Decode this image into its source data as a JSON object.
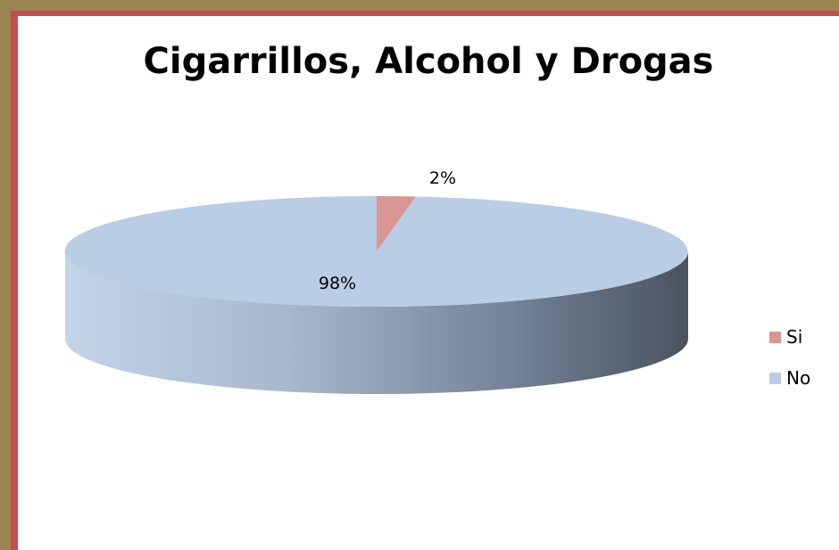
{
  "chart_data": {
    "type": "pie",
    "title": "Cigarrillos,  Alcohol y Drogas",
    "categories": [
      "Si",
      "No"
    ],
    "values": [
      2,
      98
    ],
    "data_labels": [
      "2%",
      "98%"
    ],
    "colors": [
      "#d99694",
      "#b9cde5"
    ],
    "legend_position": "right",
    "style": "3d"
  }
}
